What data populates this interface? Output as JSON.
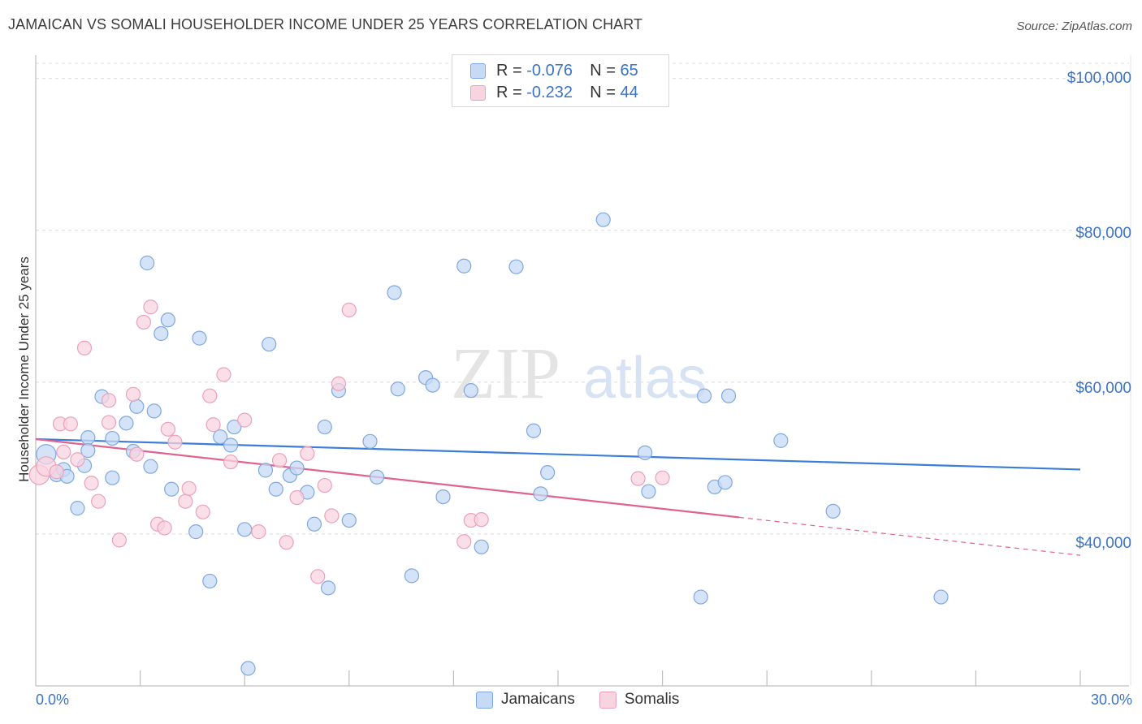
{
  "title": "JAMAICAN VS SOMALI HOUSEHOLDER INCOME UNDER 25 YEARS CORRELATION CHART",
  "source": "Source: ZipAtlas.com",
  "watermark": {
    "zip": "ZIP",
    "atlas": "atlas"
  },
  "legend_top": [
    {
      "r_label": "R = ",
      "r_value": "-0.076",
      "n_label": "N = ",
      "n_value": "65",
      "color": "#a9c6ee"
    },
    {
      "r_label": "R = ",
      "r_value": "-0.232",
      "n_label": "N = ",
      "n_value": "44",
      "color": "#f5b8cc"
    }
  ],
  "bottom_legend": [
    {
      "label": "Jamaicans",
      "color": "#a9c6ee"
    },
    {
      "label": "Somalis",
      "color": "#f5b8cc"
    }
  ],
  "x_axis": {
    "min_label": "0.0%",
    "max_label": "30.0%"
  },
  "y_axis": {
    "title": "Householder Income Under 25 years",
    "ticks": [
      "$100,000",
      "$80,000",
      "$60,000",
      "$40,000"
    ]
  },
  "chart_data": {
    "type": "scatter",
    "xlabel": "",
    "ylabel": "Householder Income Under 25 years",
    "xlim": [
      0,
      30
    ],
    "ylim": [
      20000,
      102000
    ],
    "yticks": [
      40000,
      60000,
      80000,
      100000
    ],
    "grid": true,
    "legend": "top-center",
    "colors": {
      "jamaicans": "#3b7dd8",
      "somalis": "#e0638f"
    },
    "series": [
      {
        "name": "Jamaicans",
        "fill": "#c7daf5",
        "stroke": "#7fa8e0",
        "points": [
          [
            0.3,
            50500
          ],
          [
            0.6,
            47800
          ],
          [
            0.8,
            48500
          ],
          [
            0.9,
            47600
          ],
          [
            1.4,
            49000
          ],
          [
            1.2,
            43400
          ],
          [
            1.5,
            52700
          ],
          [
            1.9,
            58100
          ],
          [
            1.5,
            51000
          ],
          [
            2.2,
            47400
          ],
          [
            2.6,
            54600
          ],
          [
            2.2,
            52600
          ],
          [
            2.8,
            50900
          ],
          [
            3.4,
            56200
          ],
          [
            2.9,
            56800
          ],
          [
            3.2,
            75700
          ],
          [
            3.6,
            66400
          ],
          [
            3.8,
            68200
          ],
          [
            3.3,
            48900
          ],
          [
            3.9,
            45900
          ],
          [
            4.7,
            65800
          ],
          [
            4.6,
            40300
          ],
          [
            5.0,
            33800
          ],
          [
            5.3,
            52800
          ],
          [
            5.6,
            51700
          ],
          [
            5.7,
            54100
          ],
          [
            6.0,
            40600
          ],
          [
            6.1,
            22300
          ],
          [
            6.6,
            48400
          ],
          [
            6.7,
            65000
          ],
          [
            6.9,
            45900
          ],
          [
            7.3,
            47700
          ],
          [
            7.5,
            48700
          ],
          [
            7.8,
            45500
          ],
          [
            8.0,
            41300
          ],
          [
            8.3,
            54100
          ],
          [
            8.4,
            32900
          ],
          [
            8.7,
            58900
          ],
          [
            9.0,
            41800
          ],
          [
            9.6,
            52200
          ],
          [
            9.8,
            47500
          ],
          [
            10.3,
            71800
          ],
          [
            10.4,
            59100
          ],
          [
            10.8,
            34500
          ],
          [
            11.2,
            60600
          ],
          [
            11.4,
            59600
          ],
          [
            11.7,
            44900
          ],
          [
            12.3,
            75300
          ],
          [
            12.5,
            58900
          ],
          [
            12.8,
            38300
          ],
          [
            13.8,
            75200
          ],
          [
            14.3,
            53600
          ],
          [
            14.5,
            45300
          ],
          [
            14.7,
            48100
          ],
          [
            16.3,
            81400
          ],
          [
            17.5,
            50700
          ],
          [
            17.6,
            45600
          ],
          [
            19.2,
            58200
          ],
          [
            19.1,
            31700
          ],
          [
            19.9,
            58200
          ],
          [
            19.5,
            46200
          ],
          [
            19.8,
            46800
          ],
          [
            21.4,
            52300
          ],
          [
            22.9,
            43000
          ],
          [
            26.0,
            31700
          ]
        ],
        "trend": {
          "x": [
            0,
            30
          ],
          "y": [
            52500,
            48500
          ]
        }
      },
      {
        "name": "Somalis",
        "fill": "#f8d3e0",
        "stroke": "#eba1ba",
        "points": [
          [
            0.1,
            47800
          ],
          [
            0.3,
            48900
          ],
          [
            0.6,
            48200
          ],
          [
            0.7,
            54500
          ],
          [
            0.8,
            50800
          ],
          [
            1.0,
            54500
          ],
          [
            1.2,
            49800
          ],
          [
            1.4,
            64500
          ],
          [
            1.6,
            46700
          ],
          [
            1.8,
            44300
          ],
          [
            2.1,
            57600
          ],
          [
            2.1,
            54700
          ],
          [
            2.4,
            39200
          ],
          [
            2.8,
            58400
          ],
          [
            2.9,
            50500
          ],
          [
            3.1,
            67900
          ],
          [
            3.3,
            69900
          ],
          [
            3.5,
            41300
          ],
          [
            3.7,
            40800
          ],
          [
            3.8,
            53800
          ],
          [
            4.0,
            52100
          ],
          [
            4.3,
            44300
          ],
          [
            4.4,
            46000
          ],
          [
            4.8,
            42900
          ],
          [
            5.0,
            58200
          ],
          [
            5.1,
            54400
          ],
          [
            5.4,
            61000
          ],
          [
            5.6,
            49500
          ],
          [
            6.0,
            55000
          ],
          [
            6.4,
            40300
          ],
          [
            7.0,
            49700
          ],
          [
            7.2,
            38900
          ],
          [
            7.5,
            44800
          ],
          [
            7.8,
            50600
          ],
          [
            8.1,
            34400
          ],
          [
            8.3,
            46400
          ],
          [
            8.5,
            42400
          ],
          [
            8.7,
            59800
          ],
          [
            9.0,
            69500
          ],
          [
            12.3,
            39000
          ],
          [
            12.5,
            41800
          ],
          [
            12.8,
            41900
          ],
          [
            18.0,
            47400
          ],
          [
            17.3,
            47300
          ]
        ],
        "trend": {
          "x": [
            0,
            20.2
          ],
          "y": [
            52500,
            42200
          ]
        },
        "trend_extension": {
          "x": [
            20.2,
            30
          ],
          "y": [
            42200,
            37200
          ]
        }
      }
    ]
  }
}
